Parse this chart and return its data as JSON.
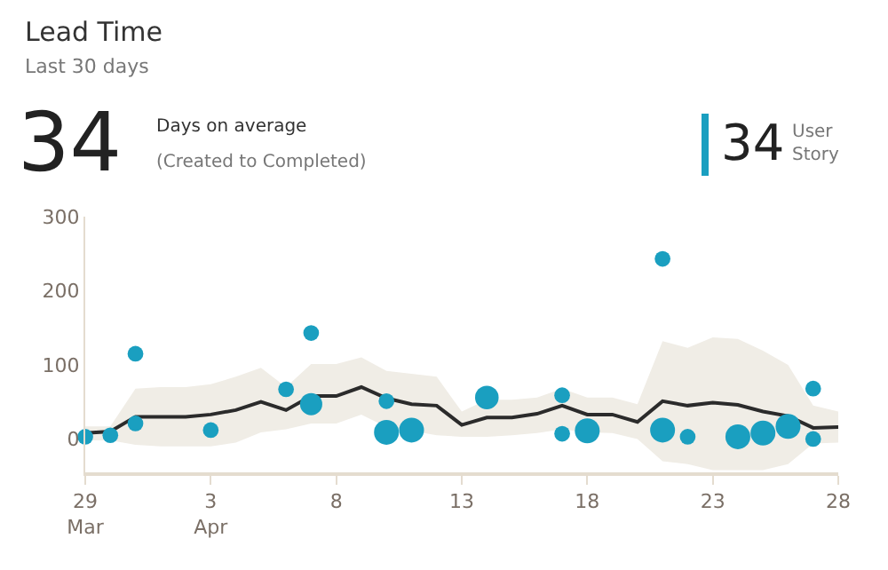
{
  "chart_data": {
    "type": "bubble",
    "title": "Lead Time",
    "subtitle": "Last 30 days",
    "annotations": [
      "34",
      "Days on average",
      "(Created to Completed)",
      "34"
    ],
    "series": [
      {
        "type": "line",
        "color": "#2b2b2b",
        "x": [
          "--03-29",
          "--03-30",
          "--03-31",
          "--04-01",
          "--04-02",
          "--04-03",
          "--04-04",
          "--04-05",
          "--04-06",
          "--04-07",
          "--04-08",
          "--04-09",
          "--04-10",
          "--04-11",
          "--04-12",
          "--04-13",
          "--04-14",
          "--04-15",
          "--04-16",
          "--04-17",
          "--04-18",
          "--04-19",
          "--04-20",
          "--04-21",
          "--04-22",
          "--04-23",
          "--04-24",
          "--04-25",
          "--04-26",
          "--04-27",
          "--04-28"
        ],
        "values": [
          8,
          10,
          30,
          30,
          30,
          33,
          39,
          50,
          39,
          58,
          58,
          70,
          55,
          47,
          45,
          19,
          29,
          29,
          34,
          45,
          33,
          33,
          23,
          51,
          45,
          49,
          46,
          37,
          31,
          15,
          16
        ],
        "lower": [
          -2,
          -2,
          -8,
          -10,
          -10,
          -10,
          -5,
          9,
          13,
          21,
          21,
          33,
          16,
          11,
          5,
          3,
          3,
          5,
          8,
          13,
          9,
          8,
          0,
          -30,
          -34,
          -42,
          -42,
          -42,
          -34,
          -6,
          -5
        ],
        "upper": [
          17,
          17,
          68,
          70,
          70,
          74,
          84,
          96,
          70,
          101,
          101,
          110,
          92,
          88,
          84,
          37,
          53,
          53,
          56,
          68,
          56,
          56,
          47,
          132,
          123,
          137,
          135,
          119,
          100,
          45,
          37
        ]
      },
      {
        "name": "User Story",
        "color": "#1a9fc0",
        "x": [
          "--03-29",
          "--03-30",
          "--03-31",
          "--03-31",
          "--04-03",
          "--04-06",
          "--04-07",
          "--04-07",
          "--04-10",
          "--04-10",
          "--04-11",
          "--04-14",
          "--04-17",
          "--04-17",
          "--04-18",
          "--04-21",
          "--04-21",
          "--04-22",
          "--04-24",
          "--04-25",
          "--04-26",
          "--04-27",
          "--04-27"
        ],
        "values": [
          3,
          5,
          115,
          21,
          12,
          67,
          143,
          47,
          51,
          9,
          12,
          56,
          59,
          7,
          11,
          243,
          12,
          3,
          3,
          8,
          17,
          68,
          0
        ],
        "sizes": [
          0.4,
          0.4,
          0.4,
          0.4,
          0.4,
          0.4,
          0.4,
          0.8,
          0.4,
          1,
          1,
          0.9,
          0.4,
          0.4,
          1,
          0.4,
          1,
          0.4,
          1,
          1,
          1,
          0.4,
          0.4
        ]
      }
    ],
    "xlim": [
      "--03-29",
      "--04-28"
    ],
    "xticks": [
      {
        "value": "--03-29",
        "label": "29\nMar"
      },
      {
        "value": "--04-03",
        "label": "3\nApr"
      },
      {
        "value": "--04-08",
        "label": "8"
      },
      {
        "value": "--04-13",
        "label": "13"
      },
      {
        "value": "--04-18",
        "label": "18"
      },
      {
        "value": "--04-23",
        "label": "23"
      },
      {
        "value": "--04-28",
        "label": "28"
      }
    ],
    "ylim": [
      -45,
      300
    ],
    "yticks": [
      0,
      100,
      200,
      300
    ]
  }
}
